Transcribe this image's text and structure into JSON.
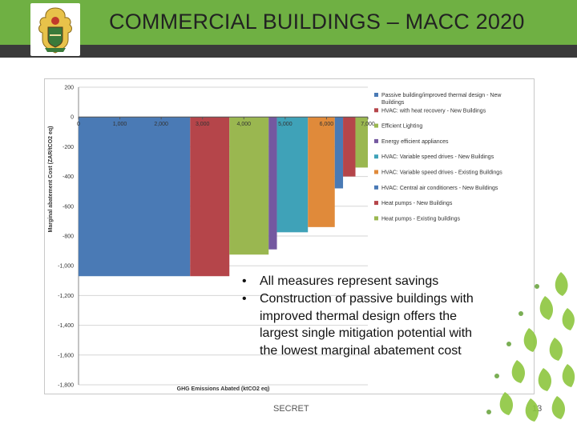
{
  "slide": {
    "title": "COMMERCIAL BUILDINGS – MACC 2020",
    "bullets": [
      "All measures represent savings",
      "Construction of passive buildings with improved thermal design offers the largest single mitigation potential with the lowest marginal abatement cost"
    ],
    "footer_label": "SECRET",
    "page_number": "13"
  },
  "colors": {
    "header_green": "#6fb043",
    "header_strip": "#3a3a3a",
    "accent_green": "#8dc63f"
  },
  "icons": {
    "logo": "coat-of-arms-icon",
    "decoration": "leaf-pattern-icon"
  },
  "chart_data": {
    "type": "bar",
    "variant": "marginal-abatement-cost-curve",
    "xlabel": "GHG Emissions Abated (ktCO2 eq)",
    "ylabel": "Marginal abatement Cost (ZAR/tCO2 eq)",
    "xlim": [
      0,
      7000
    ],
    "ylim": [
      -1800,
      200
    ],
    "x_ticks": [
      "0",
      "1,000",
      "2,000",
      "3,000",
      "4,000",
      "5,000",
      "6,000",
      "7,000"
    ],
    "y_ticks": [
      "200",
      "0",
      "-200",
      "-400",
      "-600",
      "-800",
      "-1,000",
      "-1,200",
      "-1,400",
      "-1,600",
      "-1,800"
    ],
    "grid": true,
    "legend_position": "right",
    "series": [
      {
        "name": "Passive building/improved thermal design - New Buildings",
        "color": "#4a7ab5",
        "x_start": 0,
        "width": 2700,
        "value": -1070
      },
      {
        "name": "HVAC: with heat recovery - New Buildings",
        "color": "#b5454a",
        "x_start": 2700,
        "width": 950,
        "value": -1070
      },
      {
        "name": "Efficient Lighting",
        "color": "#9ab750",
        "x_start": 3650,
        "width": 950,
        "value": -925
      },
      {
        "name": "Energy efficient appliances",
        "color": "#7458a0",
        "x_start": 4600,
        "width": 200,
        "value": -890
      },
      {
        "name": "HVAC: Variable speed drives - New Buildings",
        "color": "#3fa2b8",
        "x_start": 4800,
        "width": 750,
        "value": -775
      },
      {
        "name": "HVAC: Variable speed drives - Existing Buildings",
        "color": "#e08a3a",
        "x_start": 5550,
        "width": 650,
        "value": -740
      },
      {
        "name": "HVAC: Central air conditioners - New Buildings",
        "color": "#4a7ab5",
        "x_start": 6200,
        "width": 200,
        "value": -480
      },
      {
        "name": "Heat pumps - New Buildings",
        "color": "#b5454a",
        "x_start": 6400,
        "width": 300,
        "value": -400
      },
      {
        "name": "Heat pumps - Existing buildings",
        "color": "#9ab750",
        "x_start": 6700,
        "width": 300,
        "value": -340
      }
    ]
  }
}
